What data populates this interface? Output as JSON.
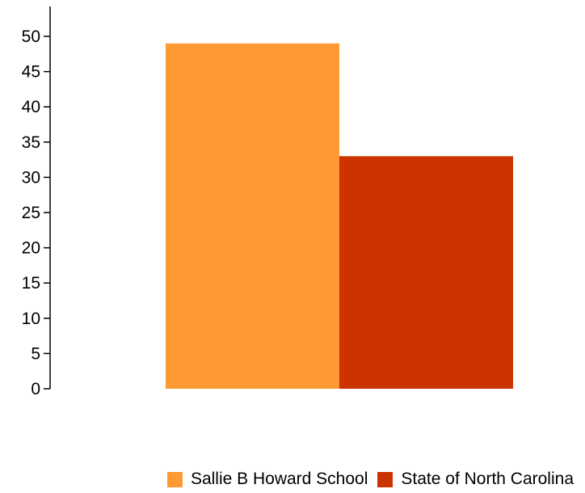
{
  "chart_data": {
    "type": "bar",
    "categories": [
      ""
    ],
    "series": [
      {
        "name": "Sallie B Howard School",
        "values": [
          49
        ],
        "color": "#FF9933"
      },
      {
        "name": "State of North Carolina",
        "values": [
          33
        ],
        "color": "#CC3300"
      }
    ],
    "title": "",
    "xlabel": "",
    "ylabel": "",
    "ylim": [
      0,
      50
    ],
    "yticks": [
      "0",
      "5",
      "10",
      "15",
      "20",
      "25",
      "30",
      "35",
      "40",
      "45",
      "50"
    ],
    "grid": false,
    "legend_position": "bottom"
  }
}
